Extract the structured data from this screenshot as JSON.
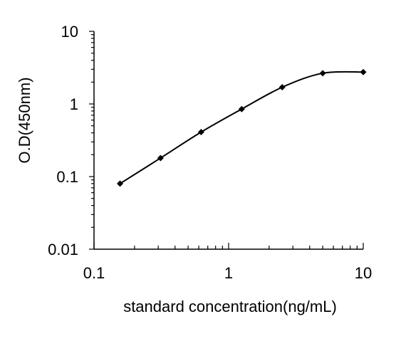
{
  "chart_data": {
    "type": "line",
    "title": "",
    "xlabel": "standard concentration(ng/mL)",
    "ylabel": "O.D(450nm)",
    "x_scale": "log",
    "y_scale": "log",
    "xlim": [
      0.1,
      10
    ],
    "ylim": [
      0.01,
      10
    ],
    "x_ticks": [
      {
        "value": 0.1,
        "label": "0.1"
      },
      {
        "value": 1,
        "label": "1"
      },
      {
        "value": 10,
        "label": "10"
      }
    ],
    "y_ticks": [
      {
        "value": 0.01,
        "label": "0.01"
      },
      {
        "value": 0.1,
        "label": "0.1"
      },
      {
        "value": 1,
        "label": "1"
      },
      {
        "value": 10,
        "label": "10"
      }
    ],
    "grid": false,
    "legend": "none",
    "marker": "diamond",
    "line_color": "#000000",
    "series": [
      {
        "x": [
          0.156,
          0.312,
          0.625,
          1.25,
          2.5,
          5,
          10
        ],
        "y": [
          0.08,
          0.18,
          0.41,
          0.85,
          1.7,
          2.65,
          2.75
        ]
      }
    ]
  }
}
